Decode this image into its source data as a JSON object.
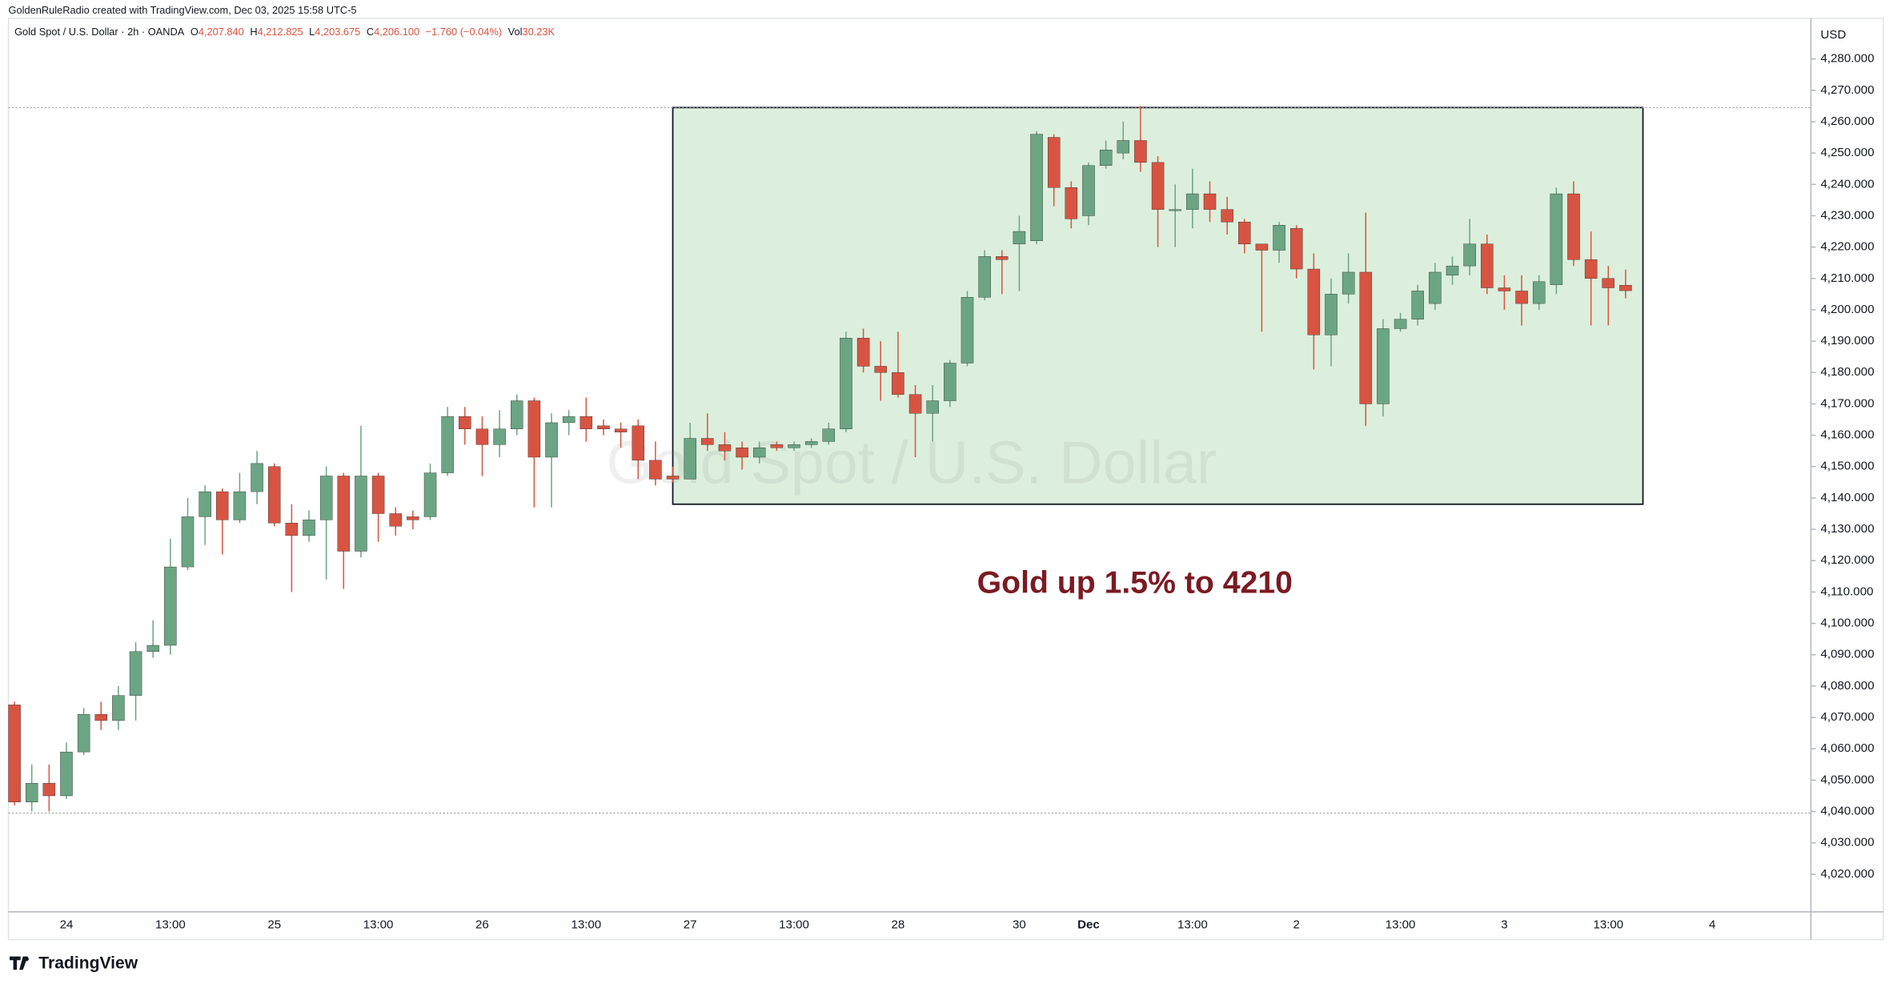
{
  "header": "GoldenRuleRadio created with TradingView.com, Dec 03, 2025 15:58 UTC-5",
  "brand": "TradingView",
  "chart_data": {
    "type": "candlestick",
    "legend": {
      "symbol": "Gold Spot / U.S. Dollar · 2h · OANDA",
      "fields": [
        {
          "key": "O",
          "value": "4,207.840"
        },
        {
          "key": "H",
          "value": "4,212.825"
        },
        {
          "key": "L",
          "value": "4,203.675"
        },
        {
          "key": "C",
          "value": "4,206.100"
        }
      ],
      "change": "−1.760 (−0.04%)",
      "volume_key": "Vol",
      "volume": "30.23K"
    },
    "watermark": "Gold Spot / U.S. Dollar",
    "annotation": "Gold up 1.5% to 4210",
    "y_axis_label": "USD",
    "up_color": "#6ba583",
    "down_color": "#d75442",
    "grid": false,
    "categories": [
      null,
      null,
      null,
      "24",
      null,
      null,
      null,
      null,
      null,
      "13:00",
      null,
      null,
      null,
      null,
      null,
      "25",
      null,
      null,
      null,
      null,
      null,
      "13:00",
      null,
      null,
      null,
      null,
      null,
      "26",
      null,
      null,
      null,
      null,
      null,
      "13:00",
      null,
      null,
      null,
      null,
      null,
      "27",
      null,
      null,
      null,
      null,
      null,
      "13:00",
      null,
      null,
      null,
      null,
      null,
      "28",
      null,
      null,
      null,
      null,
      null,
      null,
      "30",
      null,
      null,
      null,
      "Dec",
      null,
      null,
      null,
      null,
      null,
      "13:00",
      null,
      null,
      null,
      null,
      null,
      "2",
      null,
      null,
      null,
      null,
      null,
      "13:00",
      null,
      null,
      null,
      null,
      null,
      "3",
      null,
      null,
      null,
      null,
      null,
      "13:00",
      null,
      null,
      null,
      null,
      null,
      "4",
      null,
      null,
      null,
      null,
      null
    ],
    "open": [
      4074,
      4043,
      4049,
      4045,
      4059,
      4071,
      4069,
      4077,
      4091,
      4093,
      4118,
      4134,
      4142,
      4133,
      4142,
      4150,
      4132,
      4128,
      4133,
      4147,
      4123,
      4147,
      4135,
      4134,
      4134,
      4148,
      4166,
      4162,
      4157,
      4162,
      4171,
      4153,
      4164,
      4166,
      4163,
      4162,
      4163,
      4152,
      4147,
      4146,
      4159,
      4157,
      4156,
      4153,
      4157,
      4156,
      4157,
      4158,
      4162,
      4191,
      4182,
      4180,
      4173,
      4167,
      4171,
      4183,
      4204,
      4217,
      4221,
      4222,
      4255,
      4239,
      4230,
      4246,
      4250,
      4254,
      4247,
      4232,
      4232,
      4237,
      4232,
      4228,
      4221,
      4219,
      4226,
      4213,
      4192,
      4205,
      4212,
      4170,
      4194,
      4197,
      4202,
      4211,
      4214,
      4221,
      4207,
      4206,
      4202,
      4208,
      4237,
      4216,
      4210,
      4207.84,
      null,
      null,
      null,
      null,
      null,
      null,
      null,
      null,
      null,
      null
    ],
    "high": [
      4075,
      4055,
      4055,
      4062,
      4073,
      4075,
      4080,
      4094,
      4101,
      4127,
      4140,
      4144,
      4143,
      4148,
      4155,
      4151,
      4138,
      4136,
      4150,
      4148,
      4163,
      4148,
      4137,
      4136,
      4151,
      4169,
      4169,
      4166,
      4168,
      4173,
      4172,
      4167,
      4168,
      4172,
      4165,
      4164,
      4165,
      4158,
      4150,
      4164,
      4167,
      4161,
      4158,
      4158,
      4158,
      4158,
      4159,
      4164,
      4193,
      4194,
      4190,
      4193,
      4176,
      4176,
      4184,
      4206,
      4219,
      4219,
      4230,
      4257,
      4256,
      4241,
      4247,
      4254,
      4260,
      4265,
      4249,
      4240,
      4245,
      4241,
      4236,
      4229,
      4221,
      4228,
      4227,
      4218,
      4210,
      4218,
      4231,
      4197,
      4199,
      4208,
      4215,
      4217,
      4229,
      4224,
      4211,
      4211,
      4211,
      4239,
      4241,
      4225,
      4214,
      4212.825,
      null,
      null,
      null,
      null,
      null,
      null,
      null,
      null,
      null,
      null
    ],
    "low": [
      4042,
      4040,
      4040,
      4044,
      4058,
      4066,
      4066,
      4069,
      4089,
      4090,
      4117,
      4125,
      4122,
      4132,
      4138,
      4131,
      4110,
      4126,
      4114,
      4111,
      4121,
      4126,
      4128,
      4130,
      4133,
      4147,
      4157,
      4147,
      4153,
      4160,
      4137,
      4137,
      4160,
      4158,
      4160,
      4156,
      4146,
      4144,
      4145,
      4146,
      4155,
      4152,
      4149,
      4151,
      4155,
      4155,
      4156,
      4157,
      4161,
      4180,
      4171,
      4172,
      4153,
      4158,
      4169,
      4182,
      4203,
      4205,
      4206,
      4221,
      4233,
      4226,
      4227,
      4245,
      4248,
      4244,
      4220,
      4220,
      4226,
      4228,
      4224,
      4218,
      4193,
      4215,
      4210,
      4181,
      4182,
      4202,
      4163,
      4166,
      4193,
      4195,
      4200,
      4208,
      4211,
      4205,
      4200,
      4195,
      4200,
      4205,
      4214,
      4195,
      4195,
      4203.675,
      null,
      null,
      null,
      null,
      null,
      null,
      null,
      null,
      null,
      null
    ],
    "close": [
      4043,
      4049,
      4045,
      4059,
      4071,
      4069,
      4077,
      4091,
      4093,
      4118,
      4134,
      4142,
      4133,
      4142,
      4151,
      4132,
      4128,
      4133,
      4147,
      4123,
      4147,
      4135,
      4131,
      4133,
      4148,
      4166,
      4162,
      4157,
      4162,
      4171,
      4153,
      4164,
      4166,
      4162,
      4162,
      4161,
      4152,
      4146,
      4146,
      4159,
      4157,
      4155,
      4153,
      4156,
      4156,
      4157,
      4158,
      4162,
      4191,
      4182,
      4180,
      4173,
      4167,
      4171,
      4183,
      4204,
      4217,
      4216,
      4225,
      4256,
      4239,
      4229,
      4246,
      4251,
      4254,
      4247,
      4232,
      4232,
      4237,
      4232,
      4228,
      4221,
      4219,
      4227,
      4213,
      4192,
      4205,
      4212,
      4170,
      4194,
      4197,
      4206,
      4212,
      4214,
      4221,
      4207,
      4206,
      4202,
      4209,
      4237,
      4216,
      4210,
      4207,
      4206.1,
      null,
      null,
      null,
      null,
      null,
      null,
      null,
      null,
      null,
      null
    ],
    "highlight_box": {
      "index": [
        38,
        94
      ],
      "price": [
        4138,
        4264.5
      ],
      "color": "#dcefdc"
    },
    "price_lines": [
      4264.5,
      4039.5
    ],
    "ylim": [
      4008,
      4293
    ],
    "yticks": [
      {
        "value": 4020,
        "label": "4,020.000"
      },
      {
        "value": 4030,
        "label": "4,030.000"
      },
      {
        "value": 4040,
        "label": "4,040.000"
      },
      {
        "value": 4050,
        "label": "4,050.000"
      },
      {
        "value": 4060,
        "label": "4,060.000"
      },
      {
        "value": 4070,
        "label": "4,070.000"
      },
      {
        "value": 4080,
        "label": "4,080.000"
      },
      {
        "value": 4090,
        "label": "4,090.000"
      },
      {
        "value": 4100,
        "label": "4,100.000"
      },
      {
        "value": 4110,
        "label": "4,110.000"
      },
      {
        "value": 4120,
        "label": "4,120.000"
      },
      {
        "value": 4130,
        "label": "4,130.000"
      },
      {
        "value": 4140,
        "label": "4,140.000"
      },
      {
        "value": 4150,
        "label": "4,150.000"
      },
      {
        "value": 4160,
        "label": "4,160.000"
      },
      {
        "value": 4170,
        "label": "4,170.000"
      },
      {
        "value": 4180,
        "label": "4,180.000"
      },
      {
        "value": 4190,
        "label": "4,190.000"
      },
      {
        "value": 4200,
        "label": "4,200.000"
      },
      {
        "value": 4210,
        "label": "4,210.000"
      },
      {
        "value": 4220,
        "label": "4,220.000"
      },
      {
        "value": 4230,
        "label": "4,230.000"
      },
      {
        "value": 4240,
        "label": "4,240.000"
      },
      {
        "value": 4250,
        "label": "4,250.000"
      },
      {
        "value": 4260,
        "label": "4,260.000"
      },
      {
        "value": 4270,
        "label": "4,270.000"
      },
      {
        "value": 4280,
        "label": "4,280.000"
      }
    ]
  }
}
